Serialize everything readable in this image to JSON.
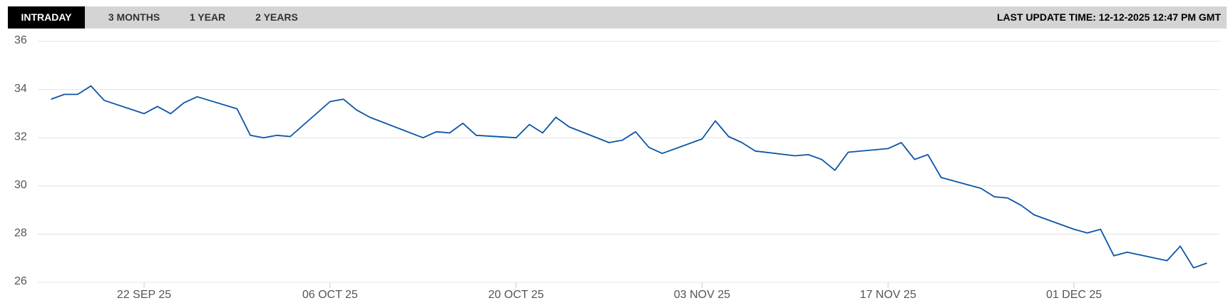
{
  "tabs": [
    "INTRADAY",
    "3 MONTHS",
    "1 YEAR",
    "2 YEARS"
  ],
  "active_tab": 0,
  "last_update": "LAST UPDATE TIME: 12-12-2025 12:47 PM GMT",
  "chart_data": {
    "type": "line",
    "x": [
      "2025-09-15",
      "2025-09-16",
      "2025-09-17",
      "2025-09-18",
      "2025-09-19",
      "2025-09-22",
      "2025-09-23",
      "2025-09-24",
      "2025-09-25",
      "2025-09-26",
      "2025-09-29",
      "2025-09-30",
      "2025-10-01",
      "2025-10-02",
      "2025-10-03",
      "2025-10-06",
      "2025-10-07",
      "2025-10-08",
      "2025-10-09",
      "2025-10-13",
      "2025-10-14",
      "2025-10-15",
      "2025-10-16",
      "2025-10-17",
      "2025-10-20",
      "2025-10-21",
      "2025-10-22",
      "2025-10-23",
      "2025-10-24",
      "2025-10-27",
      "2025-10-28",
      "2025-10-29",
      "2025-10-30",
      "2025-10-31",
      "2025-11-03",
      "2025-11-04",
      "2025-11-05",
      "2025-11-06",
      "2025-11-07",
      "2025-11-10",
      "2025-11-11",
      "2025-11-12",
      "2025-11-13",
      "2025-11-14",
      "2025-11-17",
      "2025-11-18",
      "2025-11-19",
      "2025-11-20",
      "2025-11-21",
      "2025-11-24",
      "2025-11-25",
      "2025-11-26",
      "2025-11-27",
      "2025-11-28",
      "2025-12-01",
      "2025-12-02",
      "2025-12-03",
      "2025-12-04",
      "2025-12-05",
      "2025-12-08",
      "2025-12-09",
      "2025-12-10",
      "2025-12-11"
    ],
    "series": [
      {
        "color": "#0b56a4",
        "values": [
          33.6,
          33.8,
          33.8,
          34.15,
          33.55,
          33.0,
          33.3,
          33.0,
          33.45,
          33.7,
          33.2,
          32.1,
          32.0,
          32.1,
          32.05,
          33.5,
          33.6,
          33.15,
          32.85,
          32.0,
          32.25,
          32.2,
          32.6,
          32.1,
          32.0,
          32.55,
          32.2,
          32.85,
          32.45,
          31.8,
          31.9,
          32.25,
          31.6,
          31.35,
          31.95,
          32.7,
          32.05,
          31.8,
          31.45,
          31.25,
          31.3,
          31.1,
          30.65,
          31.4,
          31.55,
          31.8,
          31.1,
          31.3,
          30.35,
          29.9,
          29.55,
          29.5,
          29.2,
          28.8,
          28.2,
          28.05,
          28.2,
          27.1,
          27.25,
          26.9,
          27.5,
          26.6,
          26.8
        ]
      }
    ],
    "xlim": [
      "2025-09-14",
      "2025-12-12"
    ],
    "xticks": [
      {
        "value": "2025-09-22",
        "label": "22 SEP 25"
      },
      {
        "value": "2025-10-06",
        "label": "06 OCT 25"
      },
      {
        "value": "2025-10-20",
        "label": "20 OCT 25"
      },
      {
        "value": "2025-11-03",
        "label": "03 NOV 25"
      },
      {
        "value": "2025-11-17",
        "label": "17 NOV 25"
      },
      {
        "value": "2025-12-01",
        "label": "01 DEC 25"
      }
    ],
    "ylim": [
      26,
      36
    ],
    "yticks": [
      26,
      28,
      30,
      32,
      34,
      36
    ],
    "grid": true
  }
}
